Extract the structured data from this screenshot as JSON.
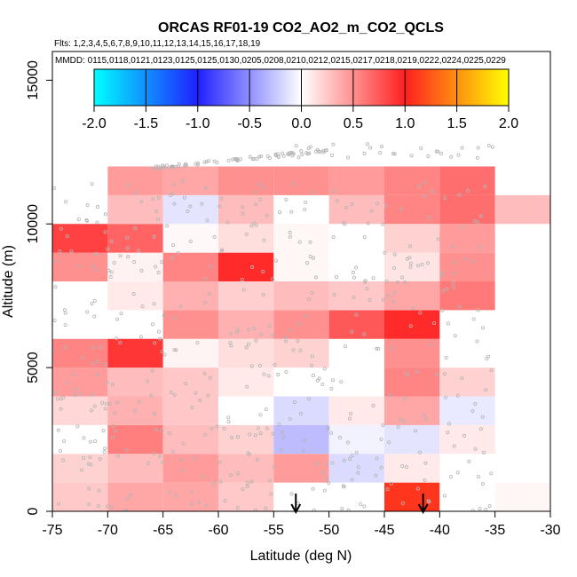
{
  "chart_data": {
    "type": "heatmap",
    "title": "ORCAS RF01-19 CO2_AO2_m_CO2_QCLS",
    "flights_label": "Flts: 1,2,3,4,5,6,7,8,9,10,11,12,13,14,15,16,17,18,19",
    "mmdd_label": "MMDD: 0115,0118,0121,0123,0125,0125,0130,0205,0208,0210,0212,0215,0217,0218,0219,0222,0224,0225,0229",
    "xlabel": "Latitude (deg N)",
    "ylabel": "Altitude (m)",
    "xlim": [
      -75,
      -30
    ],
    "ylim": [
      0,
      16000
    ],
    "x_ticks": [
      -75,
      -70,
      -65,
      -60,
      -55,
      -50,
      -45,
      -40,
      -35,
      -30
    ],
    "x_tick_labels": [
      "-75",
      "-70",
      "-65",
      "-60",
      "-55",
      "-50",
      "-45",
      "-40",
      "-35",
      "-30"
    ],
    "y_ticks": [
      0,
      5000,
      10000,
      15000
    ],
    "y_tick_labels": [
      "0",
      "5000",
      "10000",
      "15000"
    ],
    "colorbar": {
      "range": [
        -2,
        2
      ],
      "ticks": [
        -2.0,
        -1.5,
        -1.0,
        -0.5,
        0.0,
        0.5,
        1.0,
        1.5,
        2.0
      ],
      "tick_labels": [
        "-2.0",
        "-1.5",
        "-1.0",
        "-0.5",
        "0.0",
        "0.5",
        "1.0",
        "1.5",
        "2.0"
      ]
    },
    "cell_width_deg": 5,
    "cell_height_m": 1000,
    "cells": [
      {
        "lat": -75,
        "alt": 0,
        "value": 0.24
      },
      {
        "lat": -70,
        "alt": 0,
        "value": 0.4
      },
      {
        "lat": -65,
        "alt": 0,
        "value": 0.4
      },
      {
        "lat": -60,
        "alt": 0,
        "value": 0.24
      },
      {
        "lat": -55,
        "alt": 0,
        "value": 0.0
      },
      {
        "lat": -50,
        "alt": 0,
        "value": 0.0
      },
      {
        "lat": -45,
        "alt": 0,
        "value": 1.1
      },
      {
        "lat": -40,
        "alt": 0,
        "value": 0.0
      },
      {
        "lat": -35,
        "alt": 0,
        "value": 0.04
      },
      {
        "lat": -75,
        "alt": 1000,
        "value": 0.2
      },
      {
        "lat": -70,
        "alt": 1000,
        "value": 0.3
      },
      {
        "lat": -65,
        "alt": 1000,
        "value": 0.45
      },
      {
        "lat": -60,
        "alt": 1000,
        "value": 0.3
      },
      {
        "lat": -55,
        "alt": 1000,
        "value": 0.45
      },
      {
        "lat": -50,
        "alt": 1000,
        "value": -0.16
      },
      {
        "lat": -45,
        "alt": 1000,
        "value": 0.1
      },
      {
        "lat": -75,
        "alt": 2000,
        "value": 0.0
      },
      {
        "lat": -70,
        "alt": 2000,
        "value": 0.58
      },
      {
        "lat": -65,
        "alt": 2000,
        "value": 0.3
      },
      {
        "lat": -60,
        "alt": 2000,
        "value": 0.2
      },
      {
        "lat": -55,
        "alt": 2000,
        "value": -0.3
      },
      {
        "lat": -50,
        "alt": 2000,
        "value": -0.06
      },
      {
        "lat": -45,
        "alt": 2000,
        "value": -0.12
      },
      {
        "lat": -40,
        "alt": 2000,
        "value": 0.1
      },
      {
        "lat": -75,
        "alt": 3000,
        "value": 0.18
      },
      {
        "lat": -70,
        "alt": 3000,
        "value": 0.35
      },
      {
        "lat": -65,
        "alt": 3000,
        "value": 0.25
      },
      {
        "lat": -60,
        "alt": 3000,
        "value": 0.0
      },
      {
        "lat": -55,
        "alt": 3000,
        "value": -0.16
      },
      {
        "lat": -50,
        "alt": 3000,
        "value": 0.1
      },
      {
        "lat": -45,
        "alt": 3000,
        "value": 0.4
      },
      {
        "lat": -40,
        "alt": 3000,
        "value": -0.1
      },
      {
        "lat": -75,
        "alt": 4000,
        "value": 0.45
      },
      {
        "lat": -70,
        "alt": 4000,
        "value": 0.3
      },
      {
        "lat": -65,
        "alt": 4000,
        "value": 0.25
      },
      {
        "lat": -60,
        "alt": 4000,
        "value": 0.1
      },
      {
        "lat": -55,
        "alt": 4000,
        "value": 0.0
      },
      {
        "lat": -50,
        "alt": 4000,
        "value": 0.0
      },
      {
        "lat": -45,
        "alt": 4000,
        "value": 0.55
      },
      {
        "lat": -40,
        "alt": 4000,
        "value": 0.2
      },
      {
        "lat": -75,
        "alt": 5000,
        "value": 0.55
      },
      {
        "lat": -70,
        "alt": 5000,
        "value": 0.9
      },
      {
        "lat": -65,
        "alt": 5000,
        "value": 0.05
      },
      {
        "lat": -60,
        "alt": 5000,
        "value": 0.15
      },
      {
        "lat": -55,
        "alt": 5000,
        "value": 0.2
      },
      {
        "lat": -50,
        "alt": 5000,
        "value": 0.0
      },
      {
        "lat": -45,
        "alt": 5000,
        "value": 0.5
      },
      {
        "lat": -65,
        "alt": 6000,
        "value": 0.5
      },
      {
        "lat": -60,
        "alt": 6000,
        "value": 0.35
      },
      {
        "lat": -55,
        "alt": 6000,
        "value": 0.5
      },
      {
        "lat": -50,
        "alt": 6000,
        "value": 0.75
      },
      {
        "lat": -45,
        "alt": 6000,
        "value": 0.95
      },
      {
        "lat": -75,
        "alt": 7000,
        "value": 0.0
      },
      {
        "lat": -70,
        "alt": 7000,
        "value": 0.1
      },
      {
        "lat": -65,
        "alt": 7000,
        "value": 0.35
      },
      {
        "lat": -60,
        "alt": 7000,
        "value": 0.22
      },
      {
        "lat": -55,
        "alt": 7000,
        "value": 0.3
      },
      {
        "lat": -50,
        "alt": 7000,
        "value": 0.25
      },
      {
        "lat": -45,
        "alt": 7000,
        "value": 0.4
      },
      {
        "lat": -40,
        "alt": 7000,
        "value": 0.6
      },
      {
        "lat": -75,
        "alt": 8000,
        "value": 0.5
      },
      {
        "lat": -70,
        "alt": 8000,
        "value": 0.06
      },
      {
        "lat": -65,
        "alt": 8000,
        "value": 0.55
      },
      {
        "lat": -60,
        "alt": 8000,
        "value": 0.95
      },
      {
        "lat": -55,
        "alt": 8000,
        "value": 0.04
      },
      {
        "lat": -50,
        "alt": 8000,
        "value": 0.0
      },
      {
        "lat": -45,
        "alt": 8000,
        "value": 0.12
      },
      {
        "lat": -40,
        "alt": 8000,
        "value": 0.5
      },
      {
        "lat": -75,
        "alt": 9000,
        "value": 0.85
      },
      {
        "lat": -70,
        "alt": 9000,
        "value": 0.7
      },
      {
        "lat": -65,
        "alt": 9000,
        "value": 0.03
      },
      {
        "lat": -60,
        "alt": 9000,
        "value": 0.15
      },
      {
        "lat": -55,
        "alt": 9000,
        "value": 0.04
      },
      {
        "lat": -50,
        "alt": 9000,
        "value": 0.0
      },
      {
        "lat": -45,
        "alt": 9000,
        "value": 0.2
      },
      {
        "lat": -40,
        "alt": 9000,
        "value": 0.45
      },
      {
        "lat": -70,
        "alt": 10000,
        "value": 0.3
      },
      {
        "lat": -65,
        "alt": 10000,
        "value": -0.12
      },
      {
        "lat": -60,
        "alt": 10000,
        "value": 0.3
      },
      {
        "lat": -55,
        "alt": 10000,
        "value": 0.0
      },
      {
        "lat": -50,
        "alt": 10000,
        "value": 0.3
      },
      {
        "lat": -45,
        "alt": 10000,
        "value": 0.55
      },
      {
        "lat": -40,
        "alt": 10000,
        "value": 0.65
      },
      {
        "lat": -35,
        "alt": 10000,
        "value": 0.3
      },
      {
        "lat": -70,
        "alt": 11000,
        "value": 0.45
      },
      {
        "lat": -65,
        "alt": 11000,
        "value": 0.4
      },
      {
        "lat": -60,
        "alt": 11000,
        "value": 0.5
      },
      {
        "lat": -55,
        "alt": 11000,
        "value": 0.5
      },
      {
        "lat": -50,
        "alt": 11000,
        "value": 0.45
      },
      {
        "lat": -45,
        "alt": 11000,
        "value": 0.55
      },
      {
        "lat": -40,
        "alt": 11000,
        "value": 0.65
      }
    ],
    "arrows": [
      {
        "lat": -53,
        "direction": "down"
      },
      {
        "lat": -41.5,
        "direction": "down"
      }
    ],
    "colors": {
      "cyan": "#00ffff",
      "blue": "#2020ff",
      "white": "#ffffff",
      "red": "#ff2020",
      "yellow": "#ffff00",
      "points": "#b4b4b4"
    }
  }
}
